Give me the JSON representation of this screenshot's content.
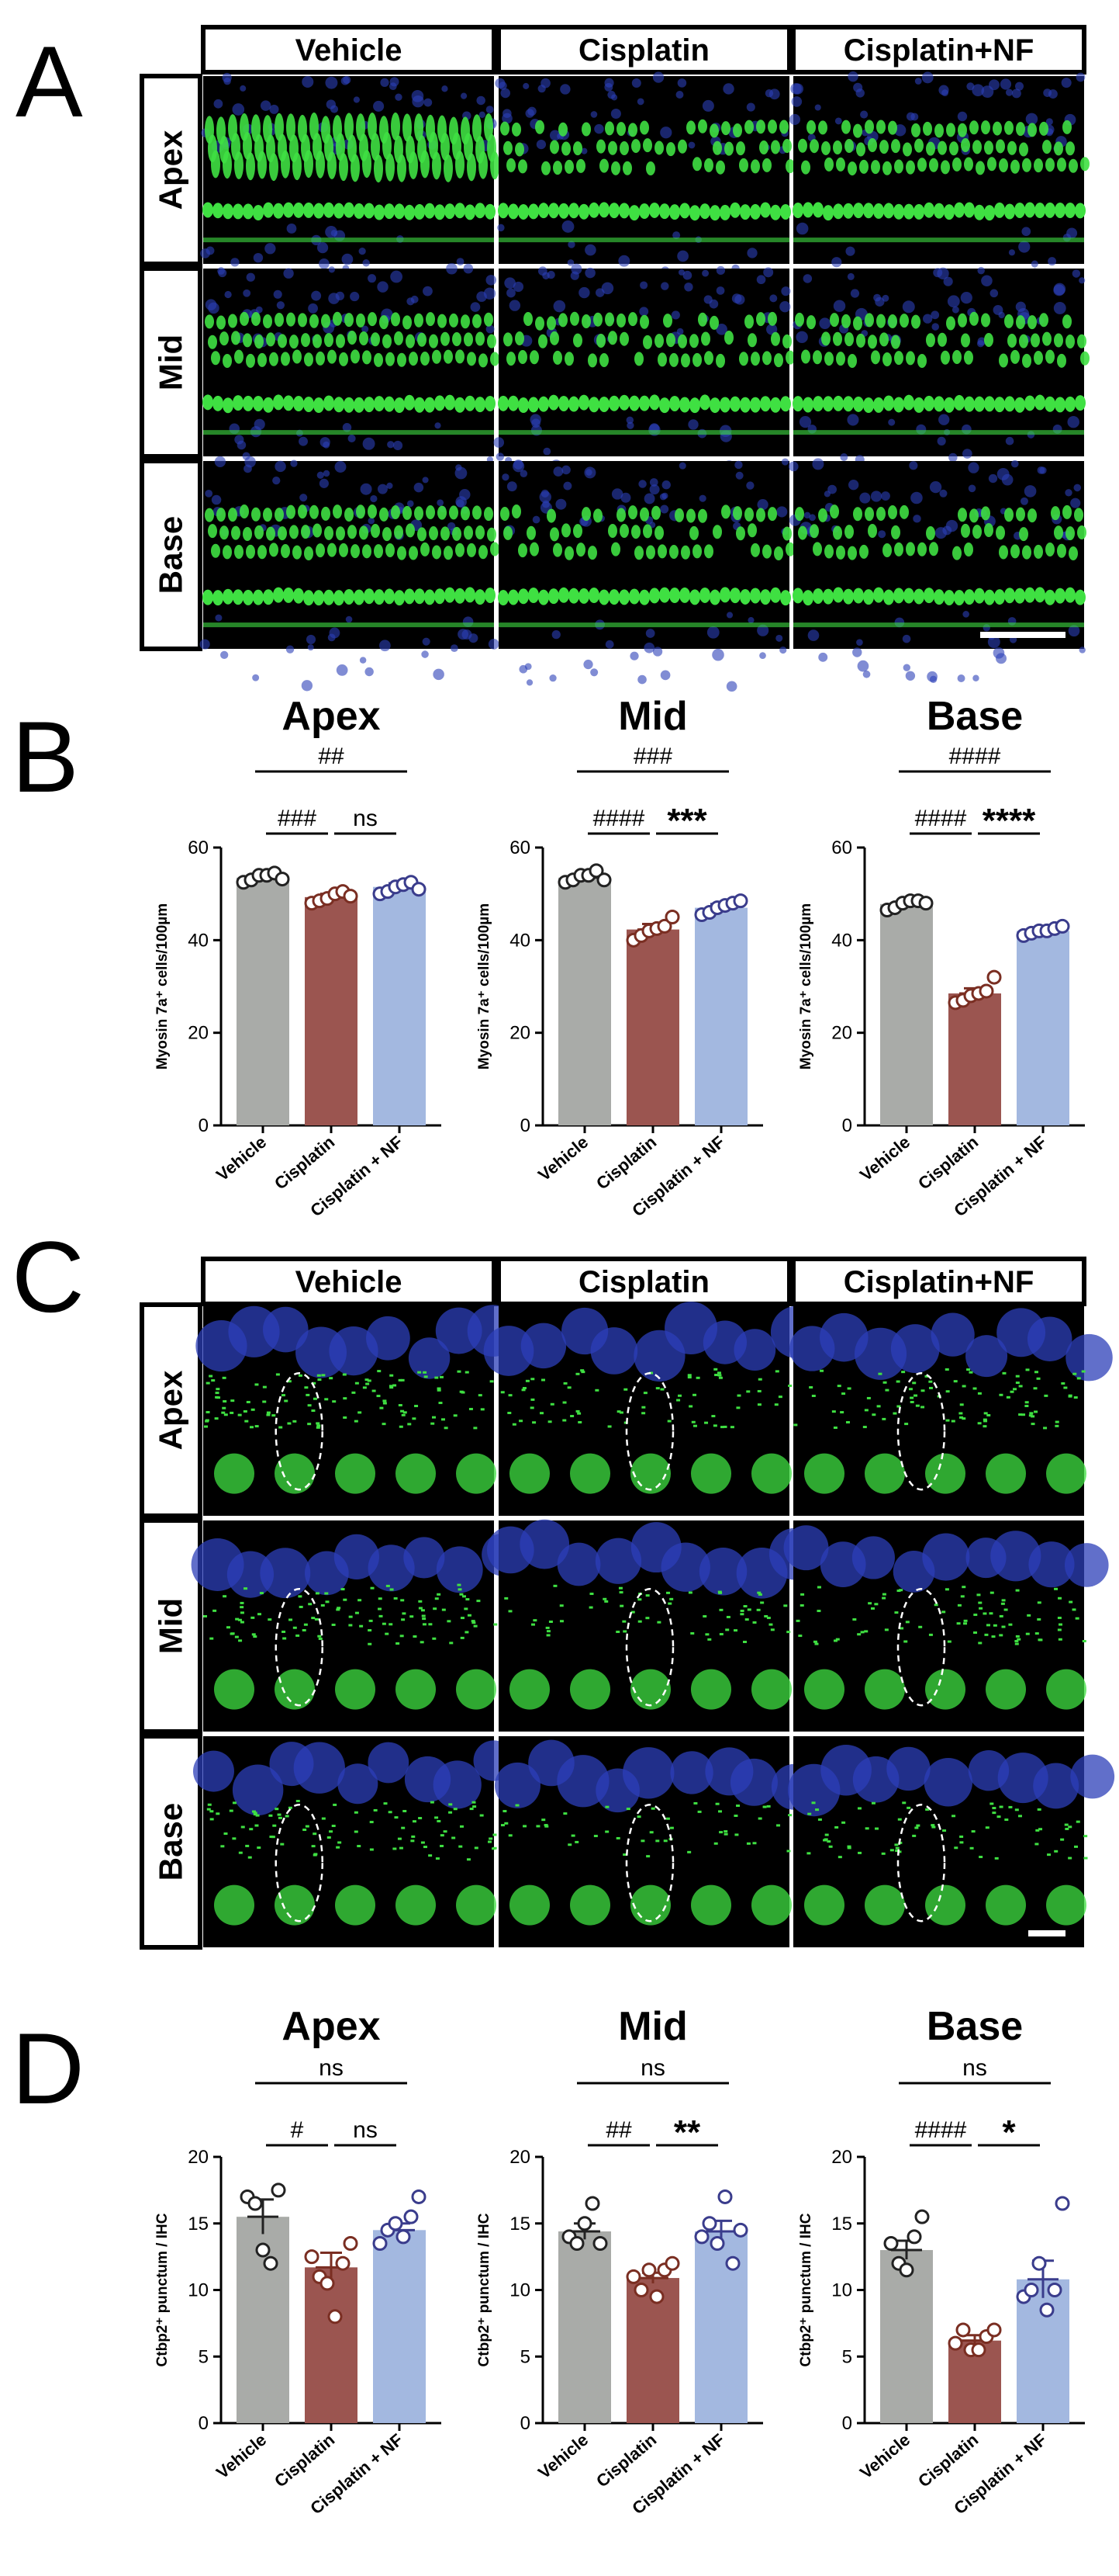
{
  "colors": {
    "vehicle": "#a9aba8",
    "cisplatin": "#9b5550",
    "nf": "#a3b8e0",
    "vehicle_edge": "#222222",
    "cisplatin_edge": "#7a2e22",
    "nf_edge": "#3a3c8c",
    "bg": "#000000",
    "green": "#3fe042",
    "blue": "#2c3fb8"
  },
  "panel_labels": [
    "A",
    "B",
    "C",
    "D"
  ],
  "conditions": [
    "Vehicle",
    "Cisplatin",
    "Cisplatin+NF"
  ],
  "regions": [
    "Apex",
    "Mid",
    "Base"
  ],
  "x_categories": [
    "Vehicle",
    "Cisplatin",
    "Cisplatin + NF"
  ],
  "chart_data": [
    {
      "type": "bar",
      "panel": "B",
      "title": "Apex",
      "ylabel": "Myosin 7a⁺ cells/100µm",
      "ylim": [
        0,
        60
      ],
      "yticks": [
        0,
        20,
        40,
        60
      ],
      "categories": [
        "Vehicle",
        "Cisplatin",
        "Cisplatin + NF"
      ],
      "values": [
        53.5,
        49.3,
        51.5
      ],
      "sem": [
        0.6,
        0.7,
        0.8
      ],
      "points": [
        [
          52.5,
          53,
          54,
          54,
          54.5,
          53.2
        ],
        [
          48,
          48.5,
          49,
          50,
          50.5,
          49.5
        ],
        [
          50,
          50.5,
          51.5,
          52,
          52.5,
          51
        ]
      ],
      "annotations": [
        {
          "label": "###",
          "from": 0,
          "to": 1,
          "level": 1
        },
        {
          "label": "ns",
          "from": 1,
          "to": 2,
          "level": 1
        },
        {
          "label": "##",
          "from": 0,
          "to": 2,
          "level": 2
        }
      ]
    },
    {
      "type": "bar",
      "panel": "B",
      "title": "Mid",
      "ylabel": "Myosin 7a⁺ cells/100µm",
      "ylim": [
        0,
        60
      ],
      "yticks": [
        0,
        20,
        40,
        60
      ],
      "categories": [
        "Vehicle",
        "Cisplatin",
        "Cisplatin + NF"
      ],
      "values": [
        53.5,
        42.3,
        47
      ],
      "sem": [
        0.5,
        1.2,
        0.8
      ],
      "points": [
        [
          52.5,
          53,
          54,
          54,
          55,
          53
        ],
        [
          40,
          41,
          42,
          42.5,
          43,
          45
        ],
        [
          45.5,
          46,
          47,
          47.5,
          48,
          48.5
        ]
      ],
      "annotations": [
        {
          "label": "####",
          "from": 0,
          "to": 1,
          "level": 1
        },
        {
          "label": "***",
          "from": 1,
          "to": 2,
          "level": 1
        },
        {
          "label": "###",
          "from": 0,
          "to": 2,
          "level": 2
        }
      ]
    },
    {
      "type": "bar",
      "panel": "B",
      "title": "Base",
      "ylabel": "Myosin 7a⁺ cells/100µm",
      "ylim": [
        0,
        60
      ],
      "yticks": [
        0,
        20,
        40,
        60
      ],
      "categories": [
        "Vehicle",
        "Cisplatin",
        "Cisplatin + NF"
      ],
      "values": [
        47.8,
        28.5,
        42
      ],
      "sem": [
        0.6,
        1.1,
        0.4
      ],
      "points": [
        [
          46.5,
          47,
          48,
          48.5,
          48.5,
          48
        ],
        [
          26.5,
          27,
          28,
          28.5,
          29,
          32
        ],
        [
          41,
          41.5,
          42,
          42,
          42.5,
          43
        ]
      ],
      "annotations": [
        {
          "label": "####",
          "from": 0,
          "to": 1,
          "level": 1
        },
        {
          "label": "****",
          "from": 1,
          "to": 2,
          "level": 1
        },
        {
          "label": "####",
          "from": 0,
          "to": 2,
          "level": 2
        }
      ]
    },
    {
      "type": "bar",
      "panel": "D",
      "title": "Apex",
      "ylabel": "Ctbp2⁺ punctum / IHC",
      "ylim": [
        0,
        20
      ],
      "yticks": [
        0,
        5,
        10,
        15,
        20
      ],
      "categories": [
        "Vehicle",
        "Cisplatin",
        "Cisplatin + NF"
      ],
      "values": [
        15.5,
        11.7,
        14.5
      ],
      "sem": [
        1.3,
        1.1,
        0.5
      ],
      "points": [
        [
          17,
          16.5,
          13,
          12,
          17.5
        ],
        [
          12.5,
          11,
          10.5,
          8,
          12,
          13.5
        ],
        [
          13.5,
          14.5,
          15,
          14,
          15.5,
          17
        ]
      ],
      "annotations": [
        {
          "label": "#",
          "from": 0,
          "to": 1,
          "level": 1
        },
        {
          "label": "ns",
          "from": 1,
          "to": 2,
          "level": 1
        },
        {
          "label": "ns",
          "from": 0,
          "to": 2,
          "level": 2
        }
      ]
    },
    {
      "type": "bar",
      "panel": "D",
      "title": "Mid",
      "ylabel": "Ctbp2⁺ punctum / IHC",
      "ylim": [
        0,
        20
      ],
      "yticks": [
        0,
        5,
        10,
        15,
        20
      ],
      "categories": [
        "Vehicle",
        "Cisplatin",
        "Cisplatin + NF"
      ],
      "values": [
        14.4,
        10.9,
        14.4
      ],
      "sem": [
        0.6,
        0.4,
        0.8
      ],
      "points": [
        [
          14,
          13.5,
          15,
          16.5,
          13.5
        ],
        [
          11,
          10,
          11.5,
          9.5,
          11.5,
          12
        ],
        [
          14,
          15,
          13.5,
          17,
          12,
          14.5
        ]
      ],
      "annotations": [
        {
          "label": "##",
          "from": 0,
          "to": 1,
          "level": 1
        },
        {
          "label": "**",
          "from": 1,
          "to": 2,
          "level": 1
        },
        {
          "label": "ns",
          "from": 0,
          "to": 2,
          "level": 2
        }
      ]
    },
    {
      "type": "bar",
      "panel": "D",
      "title": "Base",
      "ylabel": "Ctbp2⁺ punctum / IHC",
      "ylim": [
        0,
        20
      ],
      "yticks": [
        0,
        5,
        10,
        15,
        20
      ],
      "categories": [
        "Vehicle",
        "Cisplatin",
        "Cisplatin + NF"
      ],
      "values": [
        13,
        6.2,
        10.8
      ],
      "sem": [
        0.7,
        0.4,
        1.4
      ],
      "points": [
        [
          13.5,
          12,
          11.5,
          14,
          15.5
        ],
        [
          6,
          7,
          5.5,
          5.5,
          6.5,
          7
        ],
        [
          9.5,
          10,
          12,
          8.5,
          10,
          16.5
        ]
      ],
      "annotations": [
        {
          "label": "####",
          "from": 0,
          "to": 1,
          "level": 1
        },
        {
          "label": "*",
          "from": 1,
          "to": 2,
          "level": 1
        },
        {
          "label": "ns",
          "from": 0,
          "to": 2,
          "level": 2
        }
      ]
    }
  ]
}
